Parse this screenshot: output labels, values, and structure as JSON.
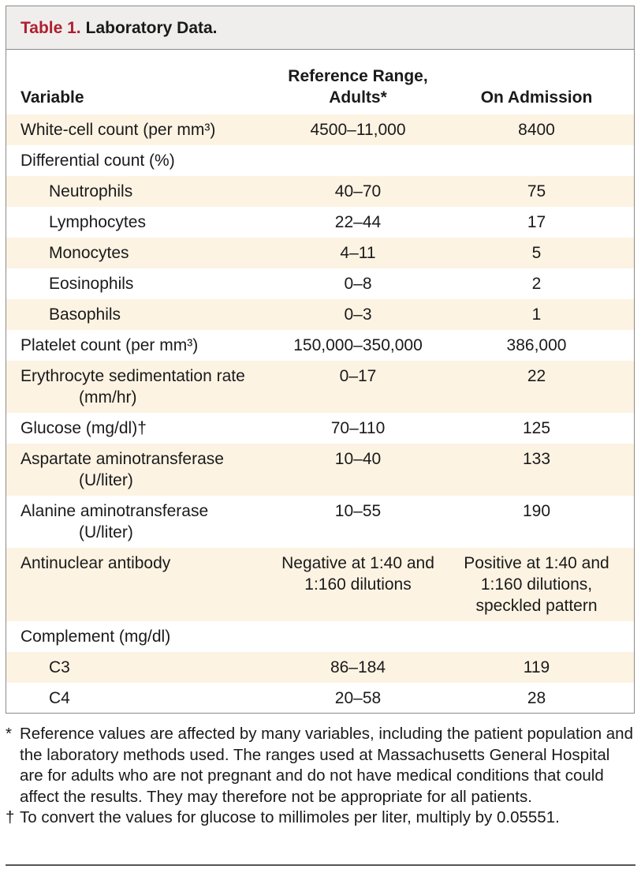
{
  "table": {
    "label": "Table 1.",
    "title": "Laboratory Data.",
    "columns": [
      "Variable",
      [
        "Reference Range,",
        "Adults*"
      ],
      "On Admission"
    ],
    "rows": [
      {
        "cells": [
          "White-cell count (per mm³)",
          "4500–11,000",
          "8400"
        ]
      },
      {
        "cells": [
          "Differential count (%)"
        ],
        "items": [
          {
            "cells": [
              "Neutrophils",
              "40–70",
              "75"
            ]
          },
          {
            "cells": [
              "Lymphocytes",
              "22–44",
              "17"
            ]
          },
          {
            "cells": [
              "Monocytes",
              "4–11",
              "5"
            ]
          },
          {
            "cells": [
              "Eosinophils",
              "0–8",
              "2"
            ]
          },
          {
            "cells": [
              "Basophils",
              "0–3",
              "1"
            ]
          }
        ]
      },
      {
        "cells": [
          "Platelet count (per mm³)",
          "150,000–350,000",
          "386,000"
        ]
      },
      {
        "cells": [
          [
            "Erythrocyte sedimentation rate",
            "(mm/hr)"
          ],
          "0–17",
          "22"
        ]
      },
      {
        "cells": [
          "Glucose (mg/dl)†",
          "70–110",
          "125"
        ]
      },
      {
        "cells": [
          [
            "Aspartate aminotransferase",
            "(U/liter)"
          ],
          "10–40",
          "133"
        ]
      },
      {
        "cells": [
          [
            "Alanine aminotransferase",
            "(U/liter)"
          ],
          "10–55",
          "190"
        ]
      },
      {
        "cells": [
          "Antinuclear antibody",
          [
            "Negative at 1:40 and",
            "1:160 dilutions"
          ],
          [
            "Positive at 1:40 and",
            "1:160 dilutions,",
            "speckled pattern"
          ]
        ]
      },
      {
        "cells": [
          "Complement (mg/dl)"
        ],
        "items": [
          {
            "cells": [
              "C3",
              "86–184",
              "119"
            ]
          },
          {
            "cells": [
              "C4",
              "20–58",
              "28"
            ]
          }
        ]
      }
    ],
    "footnotes": [
      {
        "mark": "*",
        "text": "Reference values are affected by many variables, including the patient population and the laboratory methods used. The ranges used at Massachusetts General Hospital are for adults who are not pregnant and do not have medical conditions that could affect the results. They may therefore not be appropriate for all patients."
      },
      {
        "mark": "†",
        "text": "To convert the values for glucose to millimoles per liter, multiply by 0.05551."
      }
    ]
  }
}
